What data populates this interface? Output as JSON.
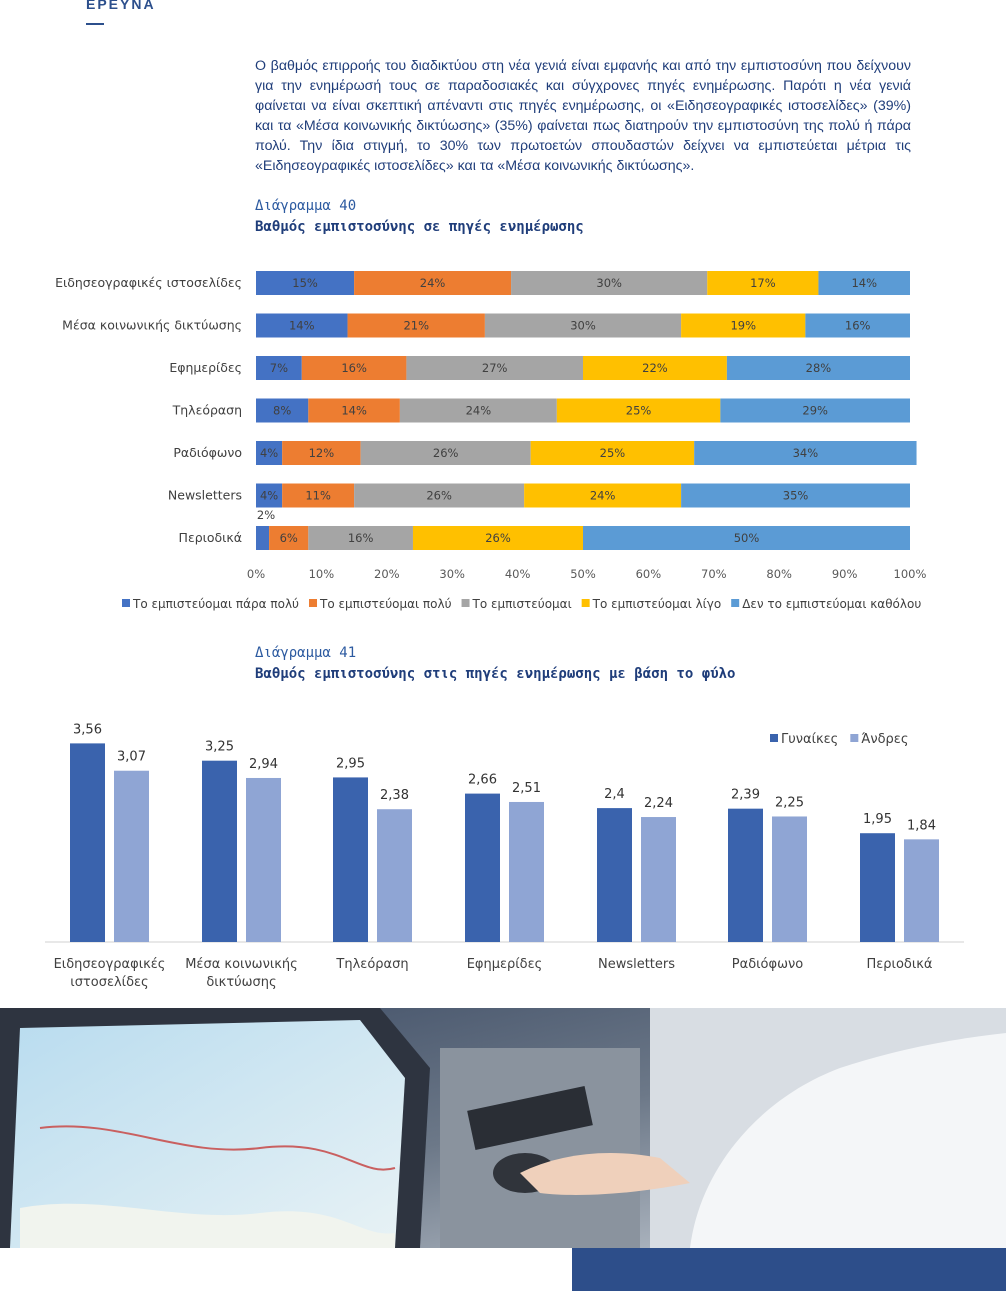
{
  "header": {
    "section_label": "ΕΡΕΥΝΑ"
  },
  "intro_text": "Ο βαθμός επιρροής του διαδικτύου στη νέα γενιά είναι εμφανής και από την εμπιστοσύνη που δείχνουν για την ενημέρωσή τους σε παραδοσιακές και σύγχρονες πηγές ενημέρωσης. Παρότι η νέα γενιά φαίνεται να είναι σκεπτική απέναντι στις πηγές ενημέρωσης, οι «Ειδησεογραφικές ιστοσελίδες» (39%) και τα «Μέσα κοινωνικής δικτύωσης» (35%) φαίνεται πως διατηρούν την εμπιστοσύνη της πολύ ή πάρα πολύ. Την ίδια στιγμή, το 30% των πρωτοετών σπουδαστών δείχνει να εμπιστεύεται μέτρια τις «Ειδησεογραφικές ιστοσελίδες» και τα «Μέσα κοινωνικής δικτύωσης».",
  "figure40": {
    "number": "Διάγραμμα 40",
    "title": "Βαθμός εμπιστοσύνης σε πηγές ενημέρωσης"
  },
  "figure41": {
    "number": "Διάγραμμα 41",
    "title": "Βαθμός εμπιστοσύνης στις πηγές ενημέρωσης με βάση το φύλο"
  },
  "chart_data": [
    {
      "type": "bar",
      "orientation": "horizontal",
      "stacked": true,
      "categories": [
        "Ειδησεογραφικές ιστοσελίδες",
        "Μέσα κοινωνικής δικτύωσης",
        "Εφημερίδες",
        "Τηλεόραση",
        "Ραδιόφωνο",
        "Newsletters",
        "Περιοδικά"
      ],
      "series": [
        {
          "name": "Το εμπιστεύομαι πάρα πολύ",
          "color": "#4472c4",
          "values": [
            15,
            14,
            7,
            8,
            4,
            4,
            2
          ]
        },
        {
          "name": "Το εμπιστεύομαι πολύ",
          "color": "#ed7d31",
          "values": [
            24,
            21,
            16,
            14,
            12,
            11,
            6
          ]
        },
        {
          "name": "Το εμπιστεύομαι",
          "color": "#a5a5a5",
          "values": [
            30,
            30,
            27,
            24,
            26,
            26,
            16
          ]
        },
        {
          "name": "Το εμπιστεύομαι λίγο",
          "color": "#ffc000",
          "values": [
            17,
            19,
            22,
            25,
            25,
            24,
            26
          ]
        },
        {
          "name": "Δεν το εμπιστεύομαι καθόλου",
          "color": "#5b9bd5",
          "values": [
            14,
            16,
            28,
            29,
            34,
            35,
            50
          ]
        }
      ],
      "xlim": [
        0,
        100
      ],
      "xticks": [
        "0%",
        "10%",
        "20%",
        "30%",
        "40%",
        "50%",
        "60%",
        "70%",
        "80%",
        "90%",
        "100%"
      ],
      "legend": "bottom",
      "grid": false
    },
    {
      "type": "bar",
      "orientation": "vertical",
      "categories": [
        [
          "Ειδησεογραφικές",
          "ιστοσελίδες"
        ],
        [
          "Μέσα κοινωνικής",
          "δικτύωσης"
        ],
        [
          "Τηλεόραση"
        ],
        [
          "Εφημερίδες"
        ],
        [
          "Newsletters"
        ],
        [
          "Ραδιόφωνο"
        ],
        [
          "Περιοδικά"
        ]
      ],
      "series": [
        {
          "name": "Γυναίκες",
          "color": "#3a63ad",
          "values": [
            3.56,
            3.25,
            2.95,
            2.66,
            2.4,
            2.39,
            1.95
          ],
          "labels": [
            "3,56",
            "3,25",
            "2,95",
            "2,66",
            "2,4",
            "2,39",
            "1,95"
          ]
        },
        {
          "name": "Άνδρες",
          "color": "#8fa5d4",
          "values": [
            3.07,
            2.94,
            2.38,
            2.51,
            2.24,
            2.25,
            1.84
          ],
          "labels": [
            "3,07",
            "2,94",
            "2,38",
            "2,51",
            "2,24",
            "2,25",
            "1,84"
          ]
        }
      ],
      "ylim": [
        0,
        3.8
      ],
      "legend": "top-right",
      "grid": false
    }
  ]
}
